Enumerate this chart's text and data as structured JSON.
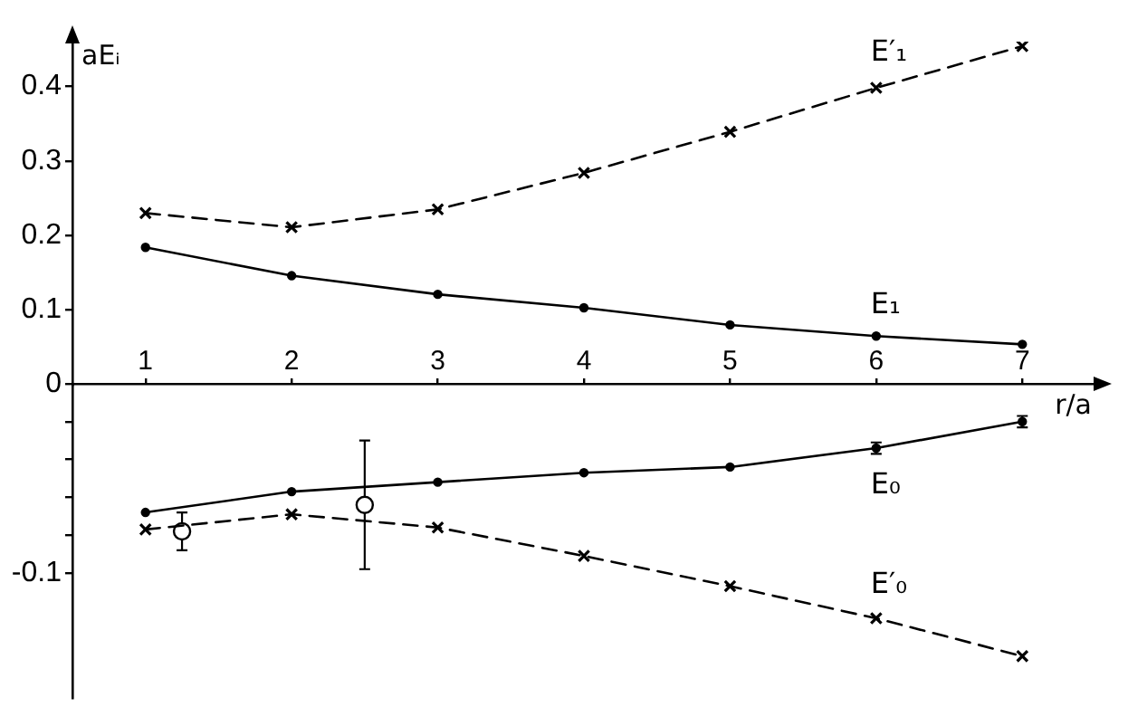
{
  "chart_data": [
    {
      "type": "line",
      "ylabel": "aEᵢ",
      "x": [
        1,
        2,
        3,
        4,
        5,
        6,
        7
      ],
      "xlim": [
        0.5,
        7.5
      ],
      "ylim": [
        0,
        0.46
      ],
      "yticks": [
        0.1,
        0.2,
        0.3,
        0.4
      ],
      "tick_labels": "y",
      "series": [
        {
          "name": "E′₁",
          "color": "#000000",
          "marker": "cross",
          "line_style": "dashed",
          "values": [
            0.23,
            0.211,
            0.235,
            0.284,
            0.339,
            0.398,
            0.454
          ]
        },
        {
          "name": "E₁",
          "color": "#000000",
          "marker": "circle",
          "line_style": "solid",
          "values": [
            0.184,
            0.146,
            0.121,
            0.103,
            0.08,
            0.065,
            0.054
          ]
        }
      ]
    },
    {
      "type": "line",
      "xlabel": "r/a",
      "x": [
        1,
        2,
        3,
        4,
        5,
        6,
        7
      ],
      "xlim": [
        0.5,
        7.5
      ],
      "xticks": [
        1,
        2,
        3,
        4,
        5,
        6,
        7
      ],
      "ylim": [
        -0.166,
        0
      ],
      "yticks": [
        0,
        {
          "value": -0.02,
          "label": null
        },
        {
          "value": -0.04,
          "label": null
        },
        {
          "value": -0.06,
          "label": null
        },
        {
          "value": -0.08,
          "label": null
        },
        -0.1
      ],
      "series": [
        {
          "name": "E₀",
          "color": "#000000",
          "marker": "circle",
          "line_style": "solid",
          "values": [
            -0.068,
            -0.057,
            -0.052,
            -0.047,
            -0.044,
            -0.034,
            -0.02
          ],
          "errors": [
            null,
            null,
            null,
            null,
            null,
            0.003,
            0.003
          ]
        },
        {
          "name": "E′₀",
          "color": "#000000",
          "marker": "cross",
          "line_style": "dashed",
          "values": [
            -0.077,
            -0.069,
            -0.076,
            -0.091,
            -0.107,
            -0.124,
            -0.144
          ]
        },
        {
          "type": "scatter",
          "color": "#000000",
          "marker": "circle",
          "x": [
            1.25,
            2.5
          ],
          "values": [
            -0.078,
            -0.064
          ],
          "errors": [
            0.01,
            0.034
          ]
        }
      ]
    }
  ]
}
